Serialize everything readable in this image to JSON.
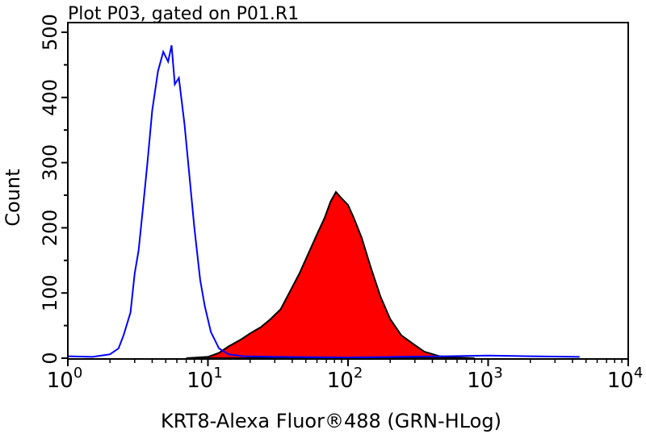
{
  "chart_data": {
    "type": "area",
    "title": "Plot P03, gated on P01.R1",
    "xlabel": "KRT8-Alexa Fluor®488 (GRN-HLog)",
    "ylabel": "Count",
    "xscale": "log",
    "xlim": [
      1,
      10000
    ],
    "ylim": [
      0,
      500
    ],
    "x_ticks": [
      {
        "base": "10",
        "exp": "0",
        "value": 1
      },
      {
        "base": "10",
        "exp": "1",
        "value": 10
      },
      {
        "base": "10",
        "exp": "2",
        "value": 100
      },
      {
        "base": "10",
        "exp": "3",
        "value": 1000
      },
      {
        "base": "10",
        "exp": "4",
        "value": 10000
      }
    ],
    "y_ticks": [
      "0",
      "100",
      "200",
      "300",
      "400",
      "500"
    ],
    "grid": false,
    "series": [
      {
        "color": "#0000ff",
        "fill": "none",
        "points": [
          [
            1,
            3
          ],
          [
            1.5,
            2
          ],
          [
            2,
            6
          ],
          [
            2.3,
            15
          ],
          [
            2.5,
            35
          ],
          [
            2.8,
            70
          ],
          [
            3,
            130
          ],
          [
            3.2,
            165
          ],
          [
            3.4,
            220
          ],
          [
            3.7,
            300
          ],
          [
            4,
            380
          ],
          [
            4.4,
            440
          ],
          [
            4.8,
            470
          ],
          [
            5.2,
            455
          ],
          [
            5.5,
            480
          ],
          [
            5.8,
            420
          ],
          [
            6.2,
            430
          ],
          [
            6.8,
            360
          ],
          [
            7.3,
            290
          ],
          [
            8,
            200
          ],
          [
            8.8,
            120
          ],
          [
            9.5,
            80
          ],
          [
            10.5,
            40
          ],
          [
            12,
            15
          ],
          [
            14,
            6
          ],
          [
            18,
            3
          ],
          [
            30,
            2
          ],
          [
            100,
            1
          ],
          [
            500,
            3
          ],
          [
            1000,
            4
          ],
          [
            2000,
            3
          ],
          [
            4500,
            2
          ]
        ]
      },
      {
        "color": "#ff0000",
        "stroke": "#000000",
        "fill": "#ff0000",
        "points": [
          [
            7,
            0
          ],
          [
            10,
            2
          ],
          [
            12,
            8
          ],
          [
            14,
            18
          ],
          [
            17,
            28
          ],
          [
            20,
            38
          ],
          [
            24,
            48
          ],
          [
            28,
            60
          ],
          [
            33,
            75
          ],
          [
            38,
            100
          ],
          [
            45,
            130
          ],
          [
            52,
            160
          ],
          [
            60,
            190
          ],
          [
            68,
            215
          ],
          [
            75,
            240
          ],
          [
            82,
            255
          ],
          [
            90,
            245
          ],
          [
            100,
            235
          ],
          [
            110,
            215
          ],
          [
            125,
            185
          ],
          [
            145,
            140
          ],
          [
            170,
            95
          ],
          [
            200,
            60
          ],
          [
            240,
            35
          ],
          [
            300,
            20
          ],
          [
            350,
            10
          ],
          [
            450,
            3
          ],
          [
            600,
            1
          ],
          [
            800,
            0
          ]
        ]
      }
    ]
  }
}
